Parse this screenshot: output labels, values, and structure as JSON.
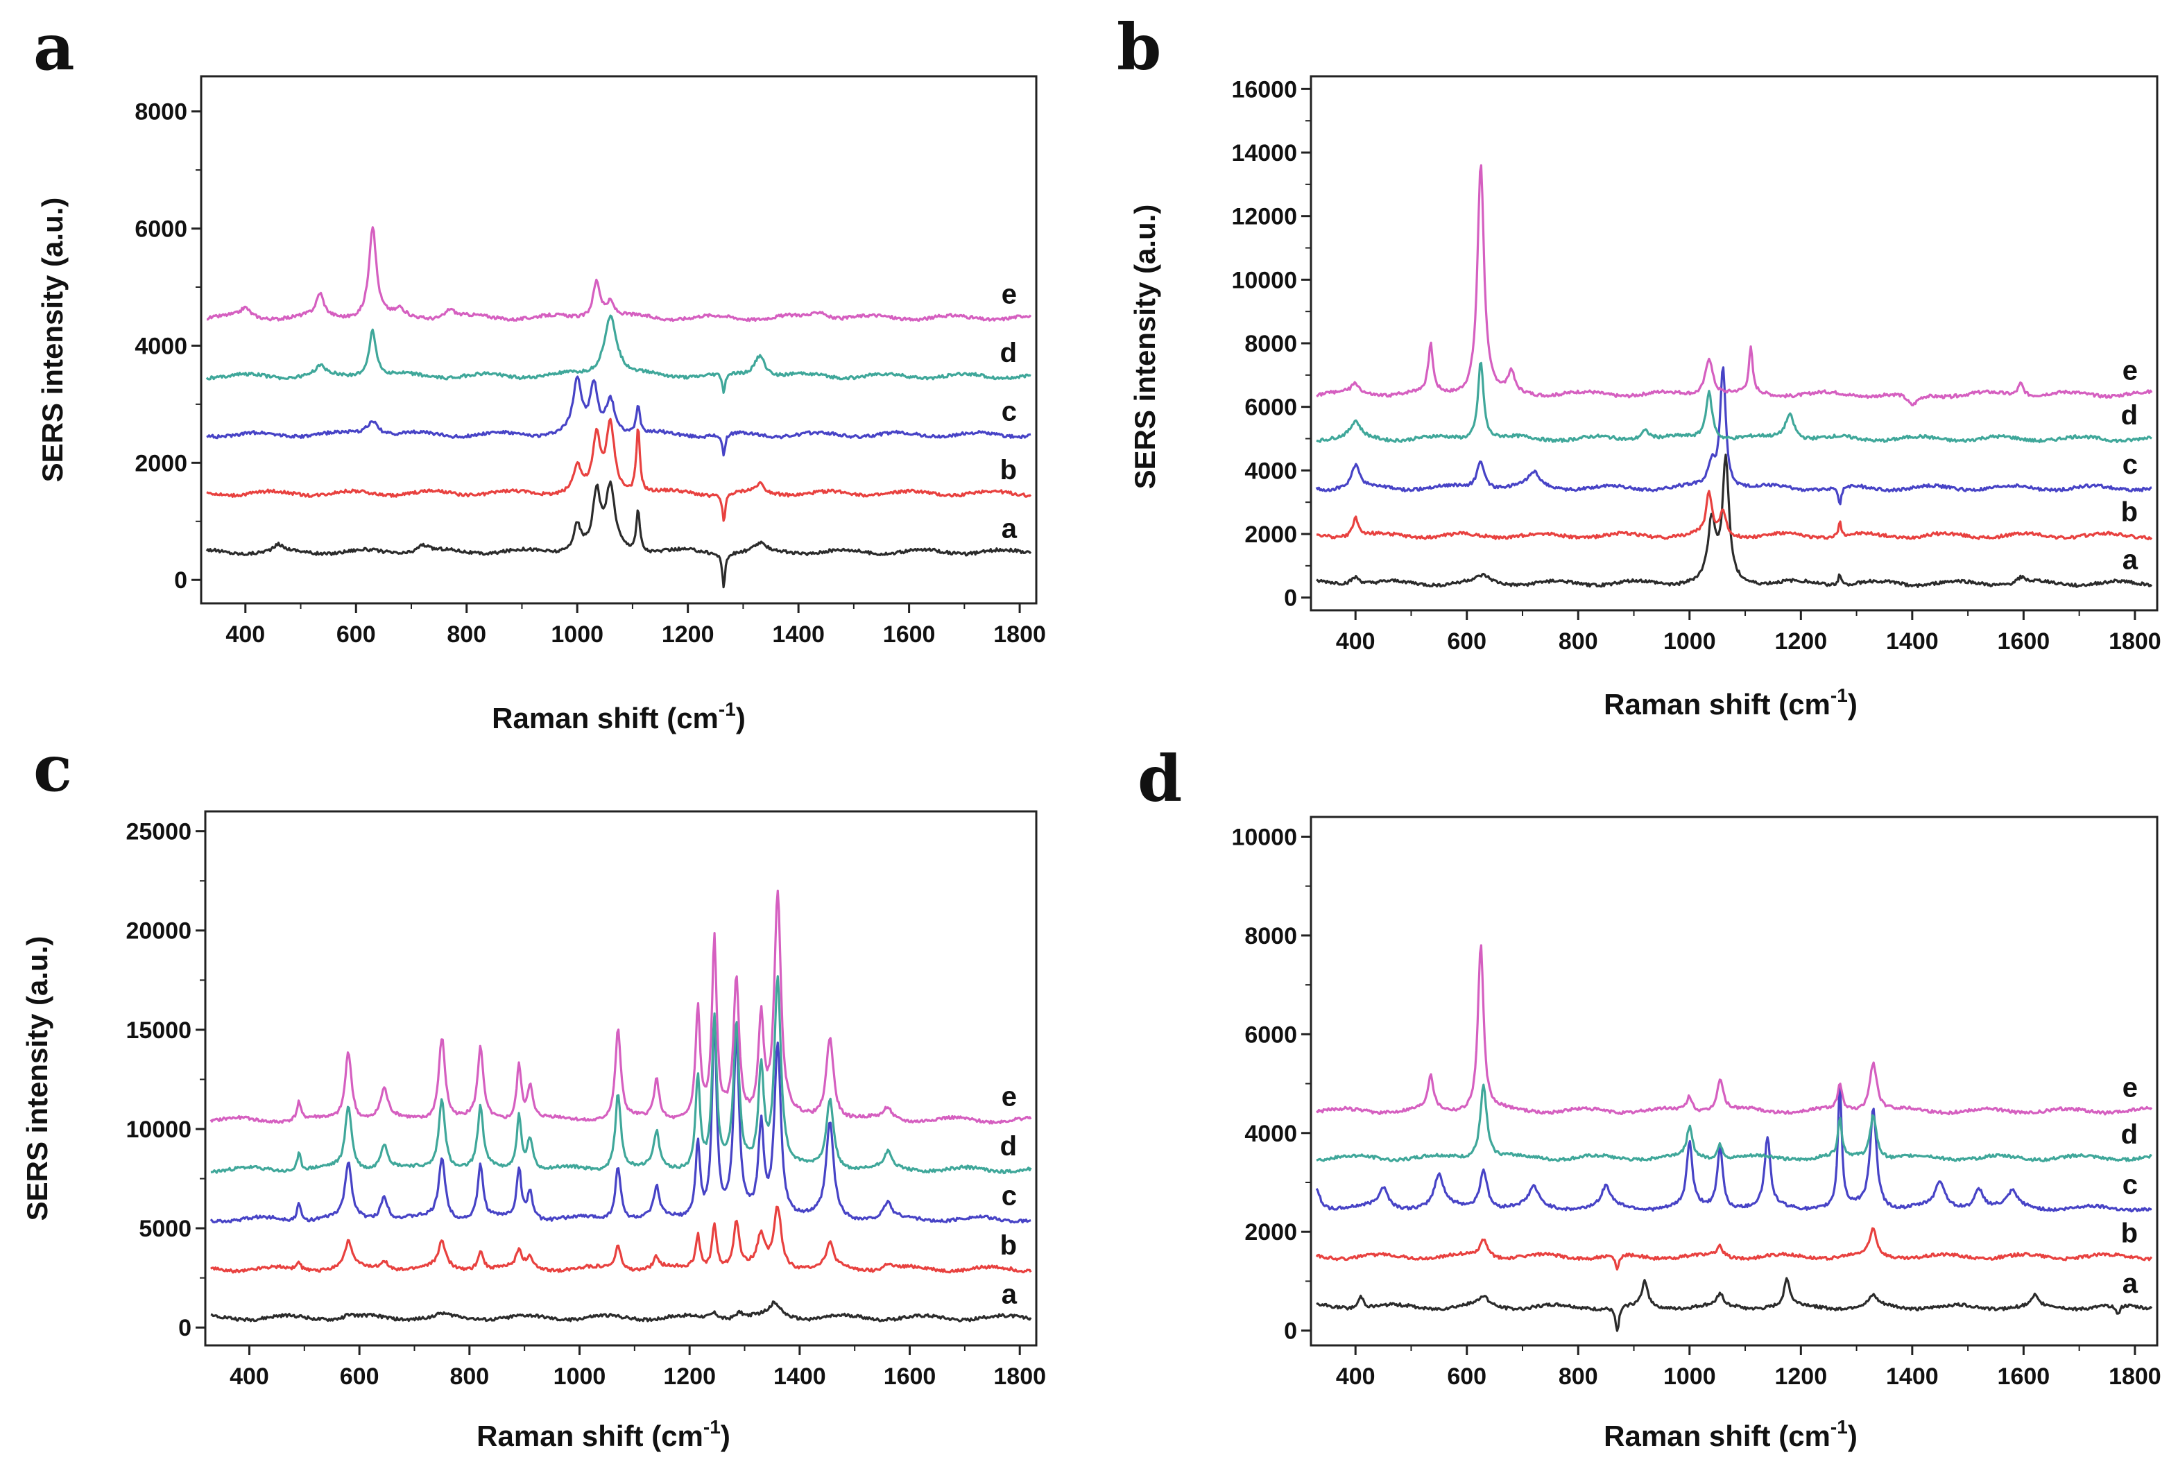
{
  "figure": {
    "ylabel": "SERS intensity (a.u.)",
    "xlabel_text": "Raman shift",
    "xlabel_unit": "(cm",
    "xlabel_sup": "-1",
    "xlabel_close": ")"
  },
  "series_colors": {
    "a": "#2b2b2b",
    "b": "#e8413f",
    "c": "#4743c6",
    "d": "#3fa79a",
    "e": "#d55fc0"
  },
  "chart_data": [
    {
      "panel": "a",
      "type": "line",
      "xlabel": "Raman shift (cm-1)",
      "ylabel": "SERS intensity (a.u.)",
      "xlim": [
        320,
        1830
      ],
      "ylim": [
        -400,
        8600
      ],
      "xticks": [
        400,
        600,
        800,
        1000,
        1200,
        1400,
        1600,
        1800
      ],
      "yticks": [
        0,
        2000,
        4000,
        6000,
        8000
      ],
      "series": [
        {
          "name": "a",
          "baseline": 480,
          "peaks": [
            [
              1000,
              450,
              8
            ],
            [
              1035,
              950,
              8
            ],
            [
              1060,
              1050,
              10
            ],
            [
              1110,
              700,
              4
            ],
            [
              1265,
              -580,
              3
            ],
            [
              1330,
              120,
              10
            ],
            [
              460,
              100,
              8
            ],
            [
              720,
              120,
              12
            ]
          ]
        },
        {
          "name": "b",
          "baseline": 1480,
          "peaks": [
            [
              1000,
              450,
              8
            ],
            [
              1035,
              900,
              8
            ],
            [
              1060,
              1150,
              9
            ],
            [
              1110,
              1100,
              4
            ],
            [
              1265,
              -500,
              3
            ],
            [
              1330,
              150,
              8
            ]
          ]
        },
        {
          "name": "c",
          "baseline": 2480,
          "peaks": [
            [
              630,
              250,
              14
            ],
            [
              1000,
              900,
              9
            ],
            [
              1030,
              800,
              8
            ],
            [
              1060,
              600,
              10
            ],
            [
              1110,
              500,
              4
            ],
            [
              1265,
              -400,
              3
            ]
          ]
        },
        {
          "name": "d",
          "baseline": 3480,
          "peaks": [
            [
              535,
              150,
              10
            ],
            [
              630,
              800,
              8
            ],
            [
              1060,
              1050,
              14
            ],
            [
              1265,
              -350,
              3
            ],
            [
              1330,
              380,
              12
            ]
          ]
        },
        {
          "name": "e",
          "baseline": 4480,
          "peaks": [
            [
              400,
              150,
              10
            ],
            [
              535,
              380,
              8
            ],
            [
              630,
              1550,
              8
            ],
            [
              680,
              120,
              8
            ],
            [
              770,
              150,
              10
            ],
            [
              1035,
              650,
              8
            ],
            [
              1060,
              250,
              8
            ],
            [
              1440,
              120,
              14
            ]
          ]
        }
      ]
    },
    {
      "panel": "b",
      "type": "line",
      "xlabel": "Raman shift (cm-1)",
      "ylabel": "SERS intensity (a.u.)",
      "xlim": [
        320,
        1840
      ],
      "ylim": [
        -400,
        16400
      ],
      "xticks": [
        400,
        600,
        800,
        1000,
        1200,
        1400,
        1600,
        1800
      ],
      "yticks": [
        0,
        2000,
        4000,
        6000,
        8000,
        10000,
        12000,
        14000,
        16000
      ],
      "series": [
        {
          "name": "a",
          "baseline": 450,
          "peaks": [
            [
              1040,
              1900,
              8
            ],
            [
              1065,
              3800,
              7
            ],
            [
              1270,
              350,
              3
            ],
            [
              400,
              250,
              10
            ],
            [
              630,
              200,
              14
            ],
            [
              1595,
              180,
              8
            ]
          ]
        },
        {
          "name": "b",
          "baseline": 1950,
          "peaks": [
            [
              400,
              600,
              6
            ],
            [
              1035,
              1300,
              6
            ],
            [
              1060,
              800,
              6
            ],
            [
              1270,
              450,
              3
            ]
          ]
        },
        {
          "name": "c",
          "baseline": 3450,
          "peaks": [
            [
              400,
              700,
              8
            ],
            [
              625,
              900,
              8
            ],
            [
              1060,
              3800,
              6
            ],
            [
              1040,
              700,
              8
            ],
            [
              1270,
              -600,
              3
            ],
            [
              720,
              450,
              12
            ]
          ]
        },
        {
          "name": "d",
          "baseline": 5000,
          "peaks": [
            [
              400,
              500,
              10
            ],
            [
              625,
              2500,
              6
            ],
            [
              1035,
              1500,
              7
            ],
            [
              1180,
              800,
              10
            ],
            [
              920,
              300,
              10
            ]
          ]
        },
        {
          "name": "e",
          "baseline": 6400,
          "peaks": [
            [
              535,
              1500,
              5
            ],
            [
              625,
              7300,
              7
            ],
            [
              680,
              650,
              6
            ],
            [
              1035,
              1200,
              8
            ],
            [
              1110,
              1400,
              4
            ],
            [
              400,
              300,
              8
            ],
            [
              1400,
              -400,
              12
            ],
            [
              1595,
              400,
              6
            ]
          ]
        }
      ]
    },
    {
      "panel": "c",
      "type": "line",
      "xlabel": "Raman shift (cm-1)",
      "ylabel": "SERS intensity (a.u.)",
      "xlim": [
        320,
        1830
      ],
      "ylim": [
        -900,
        26000
      ],
      "xticks": [
        400,
        600,
        800,
        1000,
        1200,
        1400,
        1600,
        1800
      ],
      "yticks": [
        0,
        5000,
        10000,
        15000,
        20000,
        25000
      ],
      "series": [
        {
          "name": "a",
          "baseline": 500,
          "peaks": [
            [
              580,
              150,
              8
            ],
            [
              750,
              150,
              8
            ],
            [
              1245,
              300,
              8
            ],
            [
              1290,
              300,
              8
            ],
            [
              1355,
              700,
              12
            ]
          ]
        },
        {
          "name": "b",
          "baseline": 2950,
          "peaks": [
            [
              490,
              400,
              4
            ],
            [
              580,
              1300,
              8
            ],
            [
              645,
              500,
              8
            ],
            [
              750,
              1300,
              8
            ],
            [
              820,
              1000,
              6
            ],
            [
              890,
              900,
              6
            ],
            [
              910,
              600,
              6
            ],
            [
              1070,
              1200,
              6
            ],
            [
              1140,
              600,
              6
            ],
            [
              1215,
              1700,
              5
            ],
            [
              1245,
              2300,
              5
            ],
            [
              1285,
              2300,
              6
            ],
            [
              1330,
              1600,
              8
            ],
            [
              1360,
              3100,
              8
            ],
            [
              1455,
              1200,
              8
            ],
            [
              1560,
              300,
              8
            ]
          ]
        },
        {
          "name": "c",
          "baseline": 5450,
          "peaks": [
            [
              490,
              900,
              4
            ],
            [
              580,
              2800,
              7
            ],
            [
              645,
              1200,
              8
            ],
            [
              750,
              3100,
              7
            ],
            [
              820,
              2700,
              6
            ],
            [
              890,
              2500,
              5
            ],
            [
              910,
              1400,
              6
            ],
            [
              1070,
              2700,
              6
            ],
            [
              1140,
              1500,
              6
            ],
            [
              1215,
              3800,
              5
            ],
            [
              1245,
              9900,
              5
            ],
            [
              1285,
              9000,
              6
            ],
            [
              1330,
              4500,
              6
            ],
            [
              1360,
              8800,
              7
            ],
            [
              1455,
              4800,
              8
            ],
            [
              1560,
              800,
              8
            ]
          ]
        },
        {
          "name": "d",
          "baseline": 7950,
          "peaks": [
            [
              490,
              900,
              4
            ],
            [
              580,
              3200,
              7
            ],
            [
              645,
              1300,
              8
            ],
            [
              750,
              3600,
              7
            ],
            [
              820,
              3100,
              6
            ],
            [
              890,
              2700,
              5
            ],
            [
              910,
              1600,
              6
            ],
            [
              1070,
              3900,
              6
            ],
            [
              1140,
              1800,
              6
            ],
            [
              1215,
              4700,
              5
            ],
            [
              1245,
              7500,
              5
            ],
            [
              1285,
              7200,
              6
            ],
            [
              1330,
              5000,
              6
            ],
            [
              1360,
              9600,
              7
            ],
            [
              1455,
              3500,
              8
            ],
            [
              1560,
              800,
              8
            ]
          ]
        },
        {
          "name": "e",
          "baseline": 10450,
          "peaks": [
            [
              490,
              900,
              4
            ],
            [
              580,
              3500,
              7
            ],
            [
              645,
              1500,
              8
            ],
            [
              750,
              4200,
              7
            ],
            [
              820,
              3600,
              6
            ],
            [
              890,
              2800,
              5
            ],
            [
              910,
              1700,
              6
            ],
            [
              1070,
              4500,
              6
            ],
            [
              1140,
              2000,
              6
            ],
            [
              1215,
              5500,
              5
            ],
            [
              1245,
              8900,
              5
            ],
            [
              1285,
              7000,
              6
            ],
            [
              1330,
              5000,
              6
            ],
            [
              1360,
              11300,
              7
            ],
            [
              1455,
              4200,
              8
            ],
            [
              1560,
              600,
              8
            ]
          ]
        }
      ]
    },
    {
      "panel": "d",
      "type": "line",
      "xlabel": "Raman shift (cm-1)",
      "ylabel": "SERS intensity (a.u.)",
      "xlim": [
        320,
        1840
      ],
      "ylim": [
        -300,
        10400
      ],
      "xticks": [
        400,
        600,
        800,
        1000,
        1200,
        1400,
        1600,
        1800
      ],
      "yticks": [
        0,
        2000,
        4000,
        6000,
        8000,
        10000
      ],
      "series": [
        {
          "name": "a",
          "baseline": 480,
          "peaks": [
            [
              410,
              250,
              6
            ],
            [
              630,
              200,
              10
            ],
            [
              870,
              -500,
              4
            ],
            [
              920,
              500,
              6
            ],
            [
              1055,
              250,
              6
            ],
            [
              1175,
              550,
              6
            ],
            [
              1330,
              200,
              8
            ],
            [
              1620,
              200,
              6
            ],
            [
              1770,
              -200,
              4
            ]
          ]
        },
        {
          "name": "b",
          "baseline": 1500,
          "peaks": [
            [
              630,
              350,
              8
            ],
            [
              870,
              -300,
              4
            ],
            [
              1055,
              200,
              6
            ],
            [
              1330,
              550,
              7
            ]
          ]
        },
        {
          "name": "c",
          "baseline": 2480,
          "peaks": [
            [
              330,
              400,
              8
            ],
            [
              450,
              400,
              10
            ],
            [
              550,
              650,
              10
            ],
            [
              630,
              800,
              8
            ],
            [
              720,
              400,
              10
            ],
            [
              850,
              400,
              10
            ],
            [
              1000,
              1300,
              6
            ],
            [
              1055,
              1250,
              6
            ],
            [
              1140,
              1400,
              6
            ],
            [
              1270,
              2500,
              4
            ],
            [
              1330,
              2000,
              7
            ],
            [
              1450,
              500,
              10
            ],
            [
              1520,
              400,
              10
            ],
            [
              1580,
              300,
              10
            ]
          ]
        },
        {
          "name": "d",
          "baseline": 3500,
          "peaks": [
            [
              630,
              1500,
              7
            ],
            [
              1000,
              600,
              6
            ],
            [
              1055,
              300,
              6
            ],
            [
              1270,
              800,
              4
            ],
            [
              1330,
              900,
              7
            ]
          ]
        },
        {
          "name": "e",
          "baseline": 4450,
          "peaks": [
            [
              535,
              700,
              6
            ],
            [
              625,
              3400,
              6
            ],
            [
              1000,
              300,
              6
            ],
            [
              1055,
              650,
              7
            ],
            [
              1270,
              500,
              5
            ],
            [
              1330,
              1000,
              8
            ]
          ]
        }
      ]
    }
  ]
}
